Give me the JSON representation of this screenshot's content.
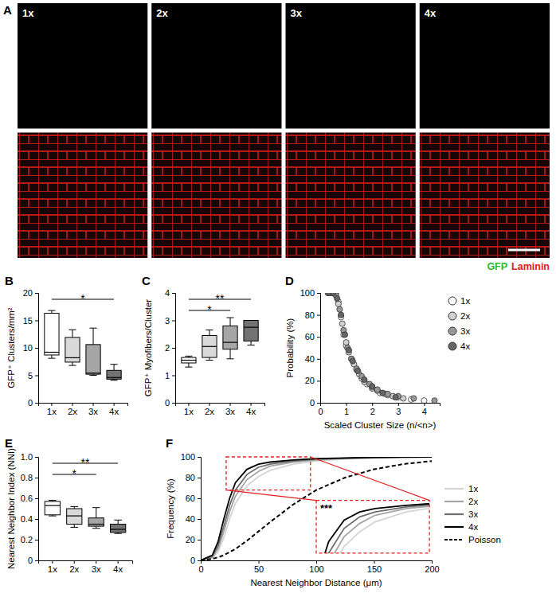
{
  "chart_data": [
    {
      "type": "image",
      "panel": "A",
      "titles": [
        "1x",
        "2x",
        "3x",
        "4x"
      ],
      "channels": [
        {
          "name": "GFP",
          "color": "#22c02a"
        },
        {
          "name": "Laminin",
          "color": "#e02020"
        }
      ]
    },
    {
      "type": "box",
      "panel": "B",
      "ylabel": "GFP⁺ Clusters/mm²",
      "categories": [
        "1x",
        "2x",
        "3x",
        "4x"
      ],
      "colors": [
        "#ffffff",
        "#d9d9d9",
        "#a6a6a6",
        "#737373"
      ],
      "boxes": [
        {
          "min": 8.1,
          "q1": 8.7,
          "median": 9.2,
          "q3": 16.3,
          "max": 16.8
        },
        {
          "min": 6.8,
          "q1": 7.4,
          "median": 8.2,
          "q3": 11.9,
          "max": 13.3
        },
        {
          "min": 5.0,
          "q1": 5.2,
          "median": 5.4,
          "q3": 10.6,
          "max": 13.6
        },
        {
          "min": 4.1,
          "q1": 4.3,
          "median": 4.6,
          "q3": 5.9,
          "max": 7.0
        }
      ],
      "ylim": [
        0,
        20
      ],
      "yticks": [
        0,
        5,
        10,
        15,
        20
      ],
      "annotations": [
        {
          "between": [
            "1x",
            "4x"
          ],
          "text": "*"
        }
      ]
    },
    {
      "type": "box",
      "panel": "C",
      "ylabel": "GFP⁺ Myofibers/Cluster",
      "categories": [
        "1x",
        "2x",
        "3x",
        "4x"
      ],
      "colors": [
        "#ffffff",
        "#d9d9d9",
        "#a6a6a6",
        "#737373"
      ],
      "boxes": [
        {
          "min": 1.3,
          "q1": 1.45,
          "median": 1.55,
          "q3": 1.65,
          "max": 1.7
        },
        {
          "min": 1.55,
          "q1": 1.65,
          "median": 2.05,
          "q3": 2.45,
          "max": 2.65
        },
        {
          "min": 1.6,
          "q1": 1.95,
          "median": 2.2,
          "q3": 2.8,
          "max": 3.1
        },
        {
          "min": 2.1,
          "q1": 2.25,
          "median": 2.75,
          "q3": 3.0,
          "max": 3.0
        }
      ],
      "ylim": [
        0,
        4
      ],
      "yticks": [
        0,
        1,
        2,
        3,
        4
      ],
      "annotations": [
        {
          "between": [
            "1x",
            "3x"
          ],
          "text": "*"
        },
        {
          "between": [
            "1x",
            "4x"
          ],
          "text": "**"
        }
      ]
    },
    {
      "type": "scatter",
      "panel": "D",
      "xlabel": "Scaled Cluster Size (n/<n>)",
      "ylabel": "Probability (%)",
      "xlim": [
        0,
        4.6
      ],
      "xticks": [
        0,
        1,
        2,
        3,
        4
      ],
      "ylim": [
        0,
        100
      ],
      "yticks": [
        0,
        20,
        40,
        60,
        80,
        100
      ],
      "legend": "right",
      "series": [
        {
          "name": "1x",
          "color": "#ffffff",
          "x": [
            0.3,
            0.4,
            0.5,
            0.6,
            0.7,
            0.8,
            0.9,
            1.0,
            1.2,
            1.4,
            1.6,
            1.8,
            2.0,
            2.3,
            2.6,
            3.0,
            3.5,
            4.0
          ],
          "values": [
            100,
            100,
            100,
            100,
            92,
            78,
            62,
            52,
            40,
            30,
            22,
            17,
            13,
            9,
            7,
            5,
            3,
            2
          ]
        },
        {
          "name": "2x",
          "color": "#d0d0d0",
          "x": [
            0.4,
            0.5,
            0.6,
            0.7,
            0.85,
            1.0,
            1.1,
            1.3,
            1.5,
            1.7,
            2.0,
            2.2,
            2.5,
            2.8,
            3.2
          ],
          "values": [
            100,
            100,
            100,
            90,
            72,
            55,
            46,
            35,
            26,
            19,
            14,
            11,
            8,
            6,
            4
          ]
        },
        {
          "name": "3x",
          "color": "#999999",
          "x": [
            0.3,
            0.45,
            0.6,
            0.75,
            0.9,
            1.05,
            1.2,
            1.4,
            1.6,
            1.9,
            2.2,
            2.6,
            3.0,
            3.6,
            4.4
          ],
          "values": [
            100,
            100,
            98,
            85,
            66,
            50,
            40,
            31,
            24,
            17,
            12,
            8,
            6,
            4,
            2
          ]
        },
        {
          "name": "4x",
          "color": "#666666",
          "x": [
            0.35,
            0.5,
            0.65,
            0.8,
            0.95,
            1.1,
            1.25,
            1.45,
            1.7,
            2.0,
            2.4,
            2.9
          ],
          "values": [
            100,
            100,
            95,
            80,
            62,
            48,
            38,
            29,
            21,
            15,
            9,
            5
          ]
        }
      ]
    },
    {
      "type": "box",
      "panel": "E",
      "ylabel": "Nearest Neighbor Index (NNI)",
      "categories": [
        "1x",
        "2x",
        "3x",
        "4x"
      ],
      "colors": [
        "#ffffff",
        "#d9d9d9",
        "#a6a6a6",
        "#737373"
      ],
      "boxes": [
        {
          "min": 0.43,
          "q1": 0.44,
          "median": 0.53,
          "q3": 0.57,
          "max": 0.58
        },
        {
          "min": 0.32,
          "q1": 0.35,
          "median": 0.43,
          "q3": 0.5,
          "max": 0.52
        },
        {
          "min": 0.31,
          "q1": 0.33,
          "median": 0.35,
          "q3": 0.41,
          "max": 0.51
        },
        {
          "min": 0.26,
          "q1": 0.27,
          "median": 0.3,
          "q3": 0.35,
          "max": 0.39
        }
      ],
      "ylim": [
        0,
        1
      ],
      "yticks": [
        0,
        0.2,
        0.4,
        0.6,
        0.8,
        {
          "value": 1,
          "label": "1.0"
        }
      ],
      "annotations": [
        {
          "between": [
            "1x",
            "3x"
          ],
          "text": "*"
        },
        {
          "between": [
            "1x",
            "4x"
          ],
          "text": "**"
        }
      ]
    },
    {
      "type": "line",
      "panel": "F",
      "xlabel": "Nearest Neighbor Distance (μm)",
      "ylabel": "Frequency (%)",
      "xlim": [
        0,
        200
      ],
      "xticks": [
        0,
        50,
        100,
        150,
        200
      ],
      "ylim": [
        0,
        100
      ],
      "yticks": [
        0,
        20,
        40,
        60,
        80,
        100
      ],
      "legend": "right",
      "x": [
        0,
        10,
        15,
        20,
        25,
        30,
        40,
        50,
        60,
        80,
        100,
        125,
        150,
        175,
        200
      ],
      "series": [
        {
          "name": "1x",
          "color": "#d4d4d4",
          "line_style": "solid",
          "values": [
            0,
            2,
            8,
            22,
            40,
            55,
            72,
            81,
            87,
            93,
            96,
            98,
            99,
            99.5,
            100
          ]
        },
        {
          "name": "2x",
          "color": "#a6a6a6",
          "line_style": "solid",
          "values": [
            0,
            3,
            11,
            28,
            47,
            62,
            78,
            86,
            91,
            95,
            97,
            98.5,
            99.2,
            99.7,
            100
          ]
        },
        {
          "name": "3x",
          "color": "#6e6e6e",
          "line_style": "solid",
          "values": [
            0,
            4,
            14,
            33,
            53,
            68,
            83,
            90,
            93,
            96,
            97.8,
            98.8,
            99.4,
            99.8,
            100
          ]
        },
        {
          "name": "4x",
          "color": "#000000",
          "line_style": "solid",
          "values": [
            0,
            5,
            18,
            40,
            60,
            75,
            88,
            93,
            95,
            97,
            98.3,
            99,
            99.6,
            99.9,
            100
          ]
        },
        {
          "name": "Poisson",
          "color": "#000000",
          "line_style": "dashed",
          "values": [
            0,
            1.5,
            3,
            5,
            8,
            11,
            19,
            28,
            37,
            54,
            68,
            80,
            88,
            93,
            96
          ]
        }
      ],
      "inset": {
        "xlim": [
          22,
          95
        ],
        "ylim": [
          68,
          100
        ],
        "annotation": "***"
      }
    }
  ]
}
